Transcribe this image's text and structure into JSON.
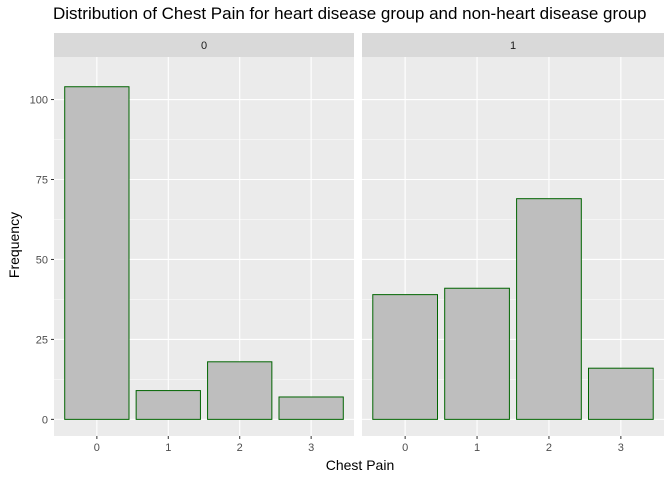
{
  "chart_data": {
    "type": "bar",
    "title": "Distribution of Chest Pain for heart disease group and non-heart disease group",
    "xlabel": "Chest Pain",
    "ylabel": "Frequency",
    "ylim": [
      0,
      110
    ],
    "yticks": [
      "0",
      "25",
      "50",
      "75",
      "100"
    ],
    "categories": [
      "0",
      "1",
      "2",
      "3"
    ],
    "grid": true,
    "colors": {
      "bar_fill": "#bebebe",
      "bar_stroke": "#006400",
      "panel_bg": "#ebebeb",
      "strip_bg": "#d9d9d9",
      "grid_major": "#ffffff"
    },
    "panels": [
      {
        "label": "0",
        "values": [
          104,
          9,
          18,
          7
        ]
      },
      {
        "label": "1",
        "values": [
          39,
          41,
          69,
          16
        ]
      }
    ]
  }
}
